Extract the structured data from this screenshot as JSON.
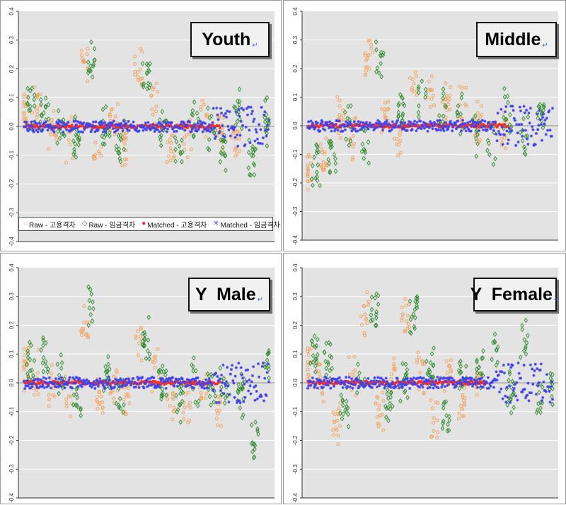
{
  "chart_data": [
    {
      "type": "scatter",
      "title": "Youth",
      "ylim": [
        -0.4,
        0.4
      ],
      "yticks": [
        "0.4",
        "0.3",
        "0.2",
        "0.1",
        "0.0",
        "-0.1",
        "-0.2",
        "-0.3",
        "-0.4"
      ],
      "n_points": 300,
      "series": [
        {
          "name": "Raw - 고용격차",
          "color": "#f4a460",
          "marker": "circle",
          "clusters": [
            [
              0,
              0.06
            ],
            [
              15,
              0.07
            ],
            [
              35,
              -0.02
            ],
            [
              55,
              -0.05
            ],
            [
              75,
              0.2
            ],
            [
              90,
              -0.08
            ],
            [
              110,
              0.02
            ],
            [
              125,
              -0.05
            ],
            [
              140,
              0.19
            ],
            [
              160,
              0.06
            ],
            [
              180,
              -0.06
            ],
            [
              200,
              -0.04
            ],
            [
              220,
              0.02
            ],
            [
              240,
              0.0
            ],
            [
              260,
              -0.05
            ]
          ]
        },
        {
          "name": "Raw - 임금격차",
          "color": "#2e8b2e",
          "marker": "diamond",
          "clusters": [
            [
              8,
              0.05
            ],
            [
              25,
              0.06
            ],
            [
              45,
              0.0
            ],
            [
              65,
              -0.04
            ],
            [
              82,
              0.22
            ],
            [
              100,
              0.0
            ],
            [
              118,
              -0.05
            ],
            [
              150,
              0.18
            ],
            [
              170,
              0.0
            ],
            [
              190,
              -0.06
            ],
            [
              210,
              0.02
            ],
            [
              230,
              0.0
            ],
            [
              245,
              -0.08
            ],
            [
              262,
              0.05
            ],
            [
              280,
              -0.1
            ],
            [
              300,
              0.02
            ]
          ]
        },
        {
          "name": "Matched - 고용격차",
          "color": "#ee3030",
          "marker": "dot",
          "extent": [
            0,
            240
          ]
        },
        {
          "name": "Matched - 임금격차",
          "color": "#4040ee",
          "marker": "star",
          "extent": [
            0,
            300
          ]
        }
      ]
    },
    {
      "type": "scatter",
      "title": "Middle",
      "ylim": [
        -0.4,
        0.4
      ],
      "yticks": [
        "0.4",
        "0.3",
        "0.2",
        "0.1",
        "0.0",
        "-0.1",
        "-0.2",
        "-0.3",
        "-0.4"
      ],
      "n_points": 300,
      "series": [
        {
          "name": "Raw - 고용격차",
          "color": "#f4a460",
          "marker": "circle",
          "clusters": [
            [
              0,
              -0.18
            ],
            [
              20,
              -0.12
            ],
            [
              40,
              0.02
            ],
            [
              55,
              -0.04
            ],
            [
              75,
              0.22
            ],
            [
              95,
              0.03
            ],
            [
              110,
              -0.04
            ],
            [
              130,
              0.15
            ],
            [
              150,
              0.1
            ],
            [
              170,
              0.08
            ],
            [
              190,
              0.06
            ],
            [
              210,
              0.0
            ],
            [
              240,
              -0.02
            ]
          ]
        },
        {
          "name": "Raw - 임금격차",
          "color": "#2e8b2e",
          "marker": "diamond",
          "clusters": [
            [
              10,
              -0.14
            ],
            [
              30,
              -0.1
            ],
            [
              50,
              0.02
            ],
            [
              70,
              -0.06
            ],
            [
              88,
              0.22
            ],
            [
              115,
              0.05
            ],
            [
              140,
              0.1
            ],
            [
              165,
              0.05
            ],
            [
              185,
              0.04
            ],
            [
              205,
              -0.02
            ],
            [
              225,
              -0.06
            ],
            [
              245,
              0.05
            ],
            [
              265,
              -0.05
            ],
            [
              285,
              0.04
            ]
          ]
        },
        {
          "name": "Matched - 고용격차",
          "color": "#ee3030",
          "marker": "dot",
          "extent": [
            0,
            245
          ]
        },
        {
          "name": "Matched - 임금격차",
          "color": "#4040ee",
          "marker": "star",
          "extent": [
            0,
            300
          ]
        }
      ]
    },
    {
      "type": "scatter",
      "title": "Y  Male",
      "ylim": [
        -0.4,
        0.4
      ],
      "yticks": [
        "0.4",
        "0.3",
        "0.2",
        "0.1",
        "0.0",
        "-0.1",
        "-0.2",
        "-0.3",
        "-0.4"
      ],
      "n_points": 300,
      "series": [
        {
          "name": "Raw - 고용격차",
          "color": "#f4a460",
          "marker": "circle",
          "clusters": [
            [
              0,
              0.05
            ],
            [
              15,
              0.03
            ],
            [
              35,
              -0.02
            ],
            [
              55,
              -0.04
            ],
            [
              75,
              0.2
            ],
            [
              92,
              -0.05
            ],
            [
              110,
              0.0
            ],
            [
              125,
              -0.05
            ],
            [
              140,
              0.15
            ],
            [
              160,
              0.05
            ],
            [
              180,
              -0.07
            ],
            [
              200,
              -0.08
            ],
            [
              220,
              -0.02
            ],
            [
              240,
              -0.1
            ]
          ]
        },
        {
          "name": "Raw - 임금격차",
          "color": "#2e8b2e",
          "marker": "diamond",
          "clusters": [
            [
              8,
              0.07
            ],
            [
              25,
              0.08
            ],
            [
              45,
              0.02
            ],
            [
              65,
              -0.06
            ],
            [
              82,
              0.26
            ],
            [
              100,
              0.02
            ],
            [
              118,
              -0.06
            ],
            [
              150,
              0.15
            ],
            [
              170,
              0.0
            ],
            [
              190,
              -0.05
            ],
            [
              210,
              0.0
            ],
            [
              230,
              -0.02
            ],
            [
              245,
              0.0
            ],
            [
              265,
              -0.04
            ],
            [
              282,
              -0.2
            ],
            [
              300,
              0.08
            ]
          ]
        },
        {
          "name": "Matched - 고용격차",
          "color": "#ee3030",
          "marker": "dot",
          "extent": [
            0,
            240
          ]
        },
        {
          "name": "Matched - 임금격차",
          "color": "#4040ee",
          "marker": "star",
          "extent": [
            0,
            300
          ]
        }
      ]
    },
    {
      "type": "scatter",
      "title": "Y  Female",
      "ylim": [
        -0.4,
        0.4
      ],
      "yticks": [
        "0.4",
        "0.3",
        "0.2",
        "0.1",
        "0.0",
        "-0.1",
        "-0.2",
        "-0.3",
        "-0.4"
      ],
      "n_points": 300,
      "series": [
        {
          "name": "Raw - 고용격차",
          "color": "#f4a460",
          "marker": "circle",
          "clusters": [
            [
              0,
              0.06
            ],
            [
              15,
              0.0
            ],
            [
              35,
              -0.15
            ],
            [
              55,
              0.04
            ],
            [
              70,
              0.24
            ],
            [
              88,
              -0.1
            ],
            [
              105,
              0.02
            ],
            [
              120,
              0.24
            ],
            [
              138,
              0.03
            ],
            [
              155,
              -0.12
            ],
            [
              172,
              0.04
            ],
            [
              190,
              -0.06
            ],
            [
              210,
              0.02
            ]
          ]
        },
        {
          "name": "Raw - 임금격차",
          "color": "#2e8b2e",
          "marker": "diamond",
          "clusters": [
            [
              8,
              0.09
            ],
            [
              25,
              0.08
            ],
            [
              45,
              -0.1
            ],
            [
              65,
              0.0
            ],
            [
              82,
              0.24
            ],
            [
              100,
              -0.06
            ],
            [
              118,
              0.0
            ],
            [
              130,
              0.24
            ],
            [
              150,
              0.04
            ],
            [
              170,
              -0.12
            ],
            [
              190,
              0.03
            ],
            [
              210,
              0.05
            ],
            [
              230,
              0.1
            ],
            [
              248,
              -0.04
            ],
            [
              265,
              0.15
            ],
            [
              285,
              -0.05
            ],
            [
              300,
              0.0
            ]
          ]
        },
        {
          "name": "Matched - 고용격차",
          "color": "#ee3030",
          "marker": "dot",
          "extent": [
            0,
            220
          ]
        },
        {
          "name": "Matched - 임금격차",
          "color": "#4040ee",
          "marker": "star",
          "extent": [
            0,
            300
          ]
        }
      ]
    }
  ],
  "legend": [
    {
      "label": "Raw - 고용격차",
      "color": "#f4a460",
      "symbol": "○"
    },
    {
      "label": "Raw - 임금격차",
      "color": "#2e8b2e",
      "symbol": "◇"
    },
    {
      "label": "Matched - 고용격차",
      "color": "#ee3030",
      "symbol": "●"
    },
    {
      "label": "Matched - 임금격차",
      "color": "#4040ee",
      "symbol": "✳"
    }
  ],
  "title_marks": [
    "↵",
    "↵",
    "↵",
    "↵"
  ]
}
